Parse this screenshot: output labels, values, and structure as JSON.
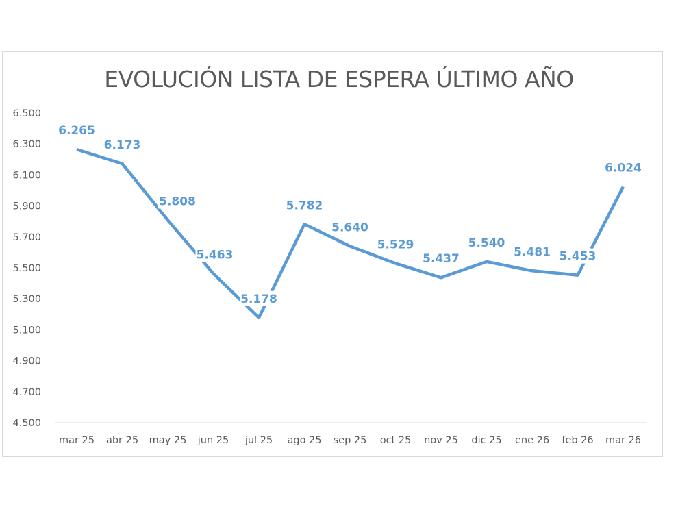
{
  "chart_data": {
    "type": "line",
    "title": "EVOLUCIÓN LISTA DE ESPERA ÚLTIMO AÑO",
    "categories": [
      "mar 25",
      "abr 25",
      "may 25",
      "jun 25",
      "jul 25",
      "ago 25",
      "sep 25",
      "oct 25",
      "nov 25",
      "dic 25",
      "ene 26",
      "feb 26",
      "mar 26"
    ],
    "series": [
      {
        "values": [
          6265,
          6173,
          5808,
          5463,
          5178,
          5782,
          5640,
          5529,
          5437,
          5540,
          5481,
          5453,
          6024
        ]
      }
    ],
    "data_labels": [
      "6.265",
      "6.173",
      "5.808",
      "5.463",
      "5.178",
      "5.782",
      "5.640",
      "5.529",
      "5.437",
      "5.540",
      "5.481",
      "5.453",
      "6.024"
    ],
    "yticks": [
      "4.500",
      "4.700",
      "4.900",
      "5.100",
      "5.300",
      "5.500",
      "5.700",
      "5.900",
      "6.100",
      "6.300",
      "6.500"
    ],
    "ylim": [
      4500,
      6500
    ],
    "grid": false,
    "line_color": "#5b9bd5"
  }
}
